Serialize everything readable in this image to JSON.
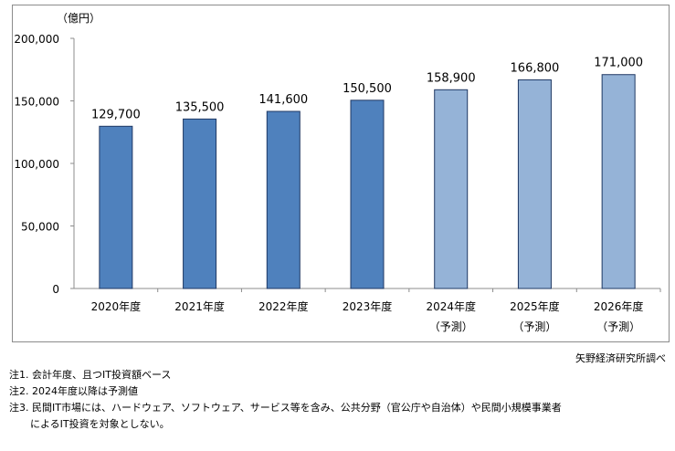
{
  "chart_data": {
    "type": "bar",
    "unit_label": "（億円）",
    "categories": [
      "2020年度",
      "2021年度",
      "2022年度",
      "2023年度",
      "2024年度",
      "2025年度",
      "2026年度"
    ],
    "category_sublabels": [
      "",
      "",
      "",
      "",
      "（予測）",
      "（予測）",
      "（予測）"
    ],
    "values": [
      129700,
      135500,
      141600,
      150500,
      158900,
      166800,
      171000
    ],
    "value_labels": [
      "129,700",
      "135,500",
      "141,600",
      "150,500",
      "158,900",
      "166,800",
      "171,000"
    ],
    "forecast": [
      false,
      false,
      false,
      false,
      true,
      true,
      true
    ],
    "ylim": [
      0,
      200000
    ],
    "yticks": [
      0,
      50000,
      100000,
      150000,
      200000
    ],
    "ytick_labels": [
      "0",
      "50,000",
      "100,000",
      "150,000",
      "200,000"
    ],
    "grid": false,
    "colors": {
      "actual": "#4F81BD",
      "forecast": "#95B3D7",
      "border": "#1F3864"
    }
  },
  "source": "矢野経済研究所調べ",
  "notes": [
    "注1.  会計年度、且つIT投資額ベース",
    "注2.  2024年度以降は予測値",
    "注3.  民間IT市場には、ハードウェア、ソフトウェア、サービス等を含み、公共分野（官公庁や自治体）や民間小規模事業者",
    "によるIT投資を対象としない。"
  ]
}
